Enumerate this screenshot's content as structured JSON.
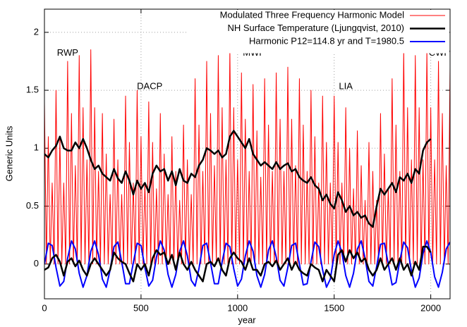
{
  "chart_data": {
    "type": "line",
    "xlabel": "year",
    "ylabel": "Generic Units",
    "xlim": [
      0,
      2100
    ],
    "ylim": [
      -0.3,
      2.2
    ],
    "xticks": [
      0,
      500,
      1000,
      1500,
      2000
    ],
    "yticks": [
      0,
      0.5,
      1,
      1.5,
      2
    ],
    "grid": true,
    "legend": "upper right",
    "annotations": [
      "RWP",
      "DACP",
      "MWP",
      "LIA",
      "CWP"
    ],
    "series": [
      {
        "name": "Modulated Three Frequency Harmonic Model",
        "color": "#ff0000",
        "x": [
          0,
          10,
          20,
          30,
          40,
          50,
          60,
          70,
          80,
          90,
          100,
          110,
          120,
          130,
          140,
          150,
          160,
          170,
          180,
          190,
          200,
          210,
          220,
          230,
          240,
          250,
          260,
          270,
          280,
          290,
          300,
          310,
          320,
          330,
          340,
          350,
          360,
          370,
          380,
          390,
          400,
          410,
          420,
          430,
          440,
          450,
          460,
          470,
          480,
          490,
          500,
          510,
          520,
          530,
          540,
          550,
          560,
          570,
          580,
          590,
          600,
          610,
          620,
          630,
          640,
          650,
          660,
          670,
          680,
          690,
          700,
          710,
          720,
          730,
          740,
          750,
          760,
          770,
          780,
          790,
          800,
          810,
          820,
          830,
          840,
          850,
          860,
          870,
          880,
          890,
          900,
          910,
          920,
          930,
          940,
          950,
          960,
          970,
          980,
          990,
          1000,
          1010,
          1020,
          1030,
          1040,
          1050,
          1060,
          1070,
          1080,
          1090,
          1100,
          1110,
          1120,
          1130,
          1140,
          1150,
          1160,
          1170,
          1180,
          1190,
          1200,
          1210,
          1220,
          1230,
          1240,
          1250,
          1260,
          1270,
          1280,
          1290,
          1300,
          1310,
          1320,
          1330,
          1340,
          1350,
          1360,
          1370,
          1380,
          1390,
          1400,
          1410,
          1420,
          1430,
          1440,
          1450,
          1460,
          1470,
          1480,
          1490,
          1500,
          1510,
          1520,
          1530,
          1540,
          1550,
          1560,
          1570,
          1580,
          1590,
          1600,
          1610,
          1620,
          1630,
          1640,
          1650,
          1660,
          1670,
          1680,
          1690,
          1700,
          1710,
          1720,
          1730,
          1740,
          1750,
          1760,
          1770,
          1780,
          1790,
          1800,
          1810,
          1820,
          1830,
          1840,
          1850,
          1860,
          1870,
          1880,
          1890,
          1900,
          1910,
          1920,
          1930,
          1940,
          1950,
          1960,
          1970,
          1980,
          1990,
          2000,
          2010,
          2020,
          2030,
          2040,
          2050,
          2060,
          2070,
          2080,
          2090,
          2100
        ],
        "values": [
          1.4,
          0,
          1.1,
          0,
          0.7,
          0,
          1.5,
          0,
          1.1,
          0,
          0.7,
          0,
          1.75,
          0,
          1.3,
          0,
          0.85,
          0,
          1.8,
          0,
          1.35,
          0,
          0.9,
          0,
          1.85,
          0,
          1.35,
          0,
          0.8,
          0,
          1.3,
          0,
          0.95,
          0,
          0.6,
          0,
          1.25,
          0,
          0.9,
          0,
          0.6,
          0,
          1.45,
          0,
          1.05,
          0,
          0.7,
          0,
          1.5,
          0,
          1.1,
          0,
          0.7,
          0,
          1.4,
          0,
          1.05,
          0,
          0.65,
          0,
          1.3,
          0,
          0.95,
          0,
          0.6,
          0,
          1.1,
          0,
          0.8,
          0,
          0.55,
          0,
          1.2,
          0,
          0.9,
          0,
          0.6,
          0,
          1.6,
          0,
          1.2,
          0,
          0.8,
          0,
          1.75,
          0,
          1.3,
          0,
          0.85,
          0,
          1.8,
          0,
          1.35,
          0,
          0.9,
          0,
          1.85,
          0,
          1.35,
          0,
          0.9,
          0,
          1.65,
          0,
          1.25,
          0,
          0.8,
          0,
          1.55,
          0,
          1.15,
          0,
          0.75,
          0,
          1.6,
          0,
          1.2,
          0,
          0.8,
          0,
          1.65,
          0,
          1.25,
          0,
          0.8,
          0,
          1.7,
          0,
          1.25,
          0,
          0.85,
          0,
          1.6,
          0,
          1.2,
          0,
          0.8,
          0,
          1.5,
          0,
          1.1,
          0,
          0.7,
          0,
          1.45,
          0,
          1.05,
          0,
          0.7,
          0,
          1.45,
          0,
          1.05,
          0,
          0.7,
          0,
          1.35,
          0,
          1.0,
          0,
          0.65,
          0,
          1.15,
          0,
          0.85,
          0,
          0.55,
          0,
          1.05,
          0,
          0.8,
          0,
          0.55,
          0,
          1.3,
          0,
          0.95,
          0,
          0.65,
          0,
          1.6,
          0,
          1.2,
          0,
          0.8,
          0,
          1.85,
          0,
          1.35,
          0,
          0.9,
          0,
          1.8,
          0,
          1.35,
          0,
          0.9,
          0,
          1.85,
          0,
          1.35,
          0,
          0.9,
          0,
          1.75,
          0,
          1.3,
          0,
          0.85,
          0,
          1.7
        ]
      },
      {
        "name": "NH Surface Temperature (Ljungqvist, 2010)",
        "color": "#000000",
        "x": [
          0,
          20,
          40,
          60,
          80,
          100,
          120,
          140,
          160,
          180,
          200,
          220,
          240,
          260,
          280,
          300,
          320,
          340,
          360,
          380,
          400,
          420,
          440,
          460,
          480,
          500,
          520,
          540,
          560,
          580,
          600,
          620,
          640,
          660,
          680,
          700,
          720,
          740,
          760,
          780,
          800,
          820,
          840,
          860,
          880,
          900,
          920,
          940,
          960,
          980,
          1000,
          1020,
          1040,
          1060,
          1080,
          1100,
          1120,
          1140,
          1160,
          1180,
          1200,
          1220,
          1240,
          1260,
          1280,
          1300,
          1320,
          1340,
          1360,
          1380,
          1400,
          1420,
          1440,
          1460,
          1480,
          1500,
          1520,
          1540,
          1560,
          1580,
          1600,
          1620,
          1640,
          1660,
          1680,
          1700,
          1720,
          1740,
          1760,
          1780,
          1800,
          1820,
          1840,
          1860,
          1880,
          1900,
          1920,
          1940,
          1960,
          1980,
          2000
        ],
        "values": [
          0.95,
          0.92,
          0.98,
          1.02,
          1.1,
          1.0,
          0.98,
          0.98,
          1.05,
          1.0,
          1.08,
          1.0,
          0.9,
          0.82,
          0.85,
          0.78,
          0.75,
          0.72,
          0.82,
          0.74,
          0.7,
          0.8,
          0.72,
          0.6,
          0.72,
          0.65,
          0.7,
          0.62,
          0.78,
          0.85,
          0.8,
          0.82,
          0.72,
          0.8,
          0.68,
          0.82,
          0.72,
          0.7,
          0.78,
          0.75,
          0.85,
          0.9,
          1.0,
          0.98,
          0.95,
          0.98,
          0.92,
          0.95,
          1.1,
          1.15,
          1.1,
          1.05,
          1.0,
          1.08,
          0.95,
          0.9,
          0.85,
          0.88,
          0.85,
          0.82,
          0.88,
          0.82,
          0.85,
          0.87,
          0.8,
          0.82,
          0.75,
          0.72,
          0.7,
          0.75,
          0.68,
          0.65,
          0.55,
          0.6,
          0.52,
          0.48,
          0.62,
          0.55,
          0.45,
          0.5,
          0.42,
          0.45,
          0.4,
          0.42,
          0.35,
          0.32,
          0.5,
          0.65,
          0.6,
          0.65,
          0.7,
          0.62,
          0.75,
          0.72,
          0.78,
          0.7,
          0.82,
          0.78,
          0.98,
          1.05,
          1.08
        ]
      },
      {
        "name": "Harmonic P12=114.8 yr and T=1980.5",
        "color": "#0000ff",
        "x": [
          0,
          20,
          40,
          60,
          80,
          100,
          120,
          140,
          160,
          180,
          200,
          220,
          240,
          260,
          280,
          300,
          320,
          340,
          360,
          380,
          400,
          420,
          440,
          460,
          480,
          500,
          520,
          540,
          560,
          580,
          600,
          620,
          640,
          660,
          680,
          700,
          720,
          740,
          760,
          780,
          800,
          820,
          840,
          860,
          880,
          900,
          920,
          940,
          960,
          980,
          1000,
          1020,
          1040,
          1060,
          1080,
          1100,
          1120,
          1140,
          1160,
          1180,
          1200,
          1220,
          1240,
          1260,
          1280,
          1300,
          1320,
          1340,
          1360,
          1380,
          1400,
          1420,
          1440,
          1460,
          1480,
          1500,
          1520,
          1540,
          1560,
          1580,
          1600,
          1620,
          1640,
          1660,
          1680,
          1700,
          1720,
          1740,
          1760,
          1780,
          1800,
          1820,
          1840,
          1860,
          1880,
          1900,
          1920,
          1940,
          1960,
          1980,
          2000,
          2020,
          2040,
          2060,
          2080,
          2100
        ],
        "values": [
          0.0,
          0.18,
          0.16,
          -0.03,
          -0.19,
          -0.15,
          0.05,
          0.2,
          0.13,
          -0.08,
          -0.2,
          -0.1,
          0.11,
          0.2,
          0.08,
          -0.13,
          -0.2,
          -0.05,
          0.15,
          0.19,
          0.02,
          -0.17,
          -0.17,
          0.01,
          0.18,
          0.16,
          -0.03,
          -0.19,
          -0.14,
          0.06,
          0.2,
          0.12,
          -0.09,
          -0.2,
          -0.09,
          0.11,
          0.2,
          0.07,
          -0.14,
          -0.19,
          -0.04,
          0.16,
          0.18,
          0.01,
          -0.17,
          -0.17,
          0.02,
          0.18,
          0.15,
          -0.04,
          -0.19,
          -0.13,
          0.07,
          0.2,
          0.11,
          -0.1,
          -0.2,
          -0.09,
          0.12,
          0.2,
          0.06,
          -0.14,
          -0.19,
          -0.03,
          0.16,
          0.18,
          0.0,
          -0.18,
          -0.17,
          0.02,
          0.19,
          0.15,
          -0.05,
          -0.2,
          -0.13,
          0.08,
          0.2,
          0.1,
          -0.1,
          -0.2,
          -0.08,
          0.13,
          0.2,
          0.05,
          -0.15,
          -0.19,
          -0.02,
          0.17,
          0.18,
          0.0,
          -0.18,
          -0.16,
          0.03,
          0.19,
          0.14,
          -0.06,
          -0.2,
          -0.12,
          0.09,
          0.2,
          0.1,
          -0.11,
          -0.2,
          -0.07,
          0.13,
          0.19
        ]
      },
      {
        "color": "#000000",
        "x": [
          0,
          20,
          40,
          60,
          80,
          100,
          120,
          140,
          160,
          180,
          200,
          220,
          240,
          260,
          280,
          300,
          320,
          340,
          360,
          380,
          400,
          420,
          440,
          460,
          480,
          500,
          520,
          540,
          560,
          580,
          600,
          620,
          640,
          660,
          680,
          700,
          720,
          740,
          760,
          780,
          800,
          820,
          840,
          860,
          880,
          900,
          920,
          940,
          960,
          980,
          1000,
          1020,
          1040,
          1060,
          1080,
          1100,
          1120,
          1140,
          1160,
          1180,
          1200,
          1220,
          1240,
          1260,
          1280,
          1300,
          1320,
          1340,
          1360,
          1380,
          1400,
          1420,
          1440,
          1460,
          1480,
          1500,
          1520,
          1540,
          1560,
          1580,
          1600,
          1620,
          1640,
          1660,
          1680,
          1700,
          1720,
          1740,
          1760,
          1780,
          1800,
          1820,
          1840,
          1860,
          1880,
          1900,
          1920,
          1940,
          1960,
          1980,
          2000
        ],
        "values": [
          -0.05,
          -0.03,
          0.05,
          0.08,
          0.02,
          -0.1,
          0.02,
          0.05,
          -0.02,
          0.03,
          -0.05,
          -0.1,
          0.0,
          0.05,
          0.0,
          -0.05,
          -0.1,
          -0.05,
          0.1,
          0.05,
          0.02,
          0.0,
          -0.08,
          -0.15,
          0.0,
          -0.05,
          0.0,
          -0.1,
          0.05,
          0.12,
          0.08,
          0.1,
          0.0,
          0.08,
          -0.05,
          0.1,
          0.0,
          -0.05,
          0.02,
          -0.05,
          -0.1,
          -0.15,
          0.0,
          0.02,
          -0.02,
          0.05,
          -0.05,
          -0.1,
          0.05,
          0.1,
          0.05,
          0.02,
          -0.05,
          0.05,
          -0.05,
          -0.05,
          -0.1,
          0.0,
          0.02,
          -0.02,
          0.03,
          -0.05,
          0.0,
          0.05,
          -0.05,
          0.02,
          -0.05,
          -0.08,
          -0.1,
          0.0,
          -0.03,
          -0.05,
          -0.15,
          -0.05,
          -0.1,
          -0.15,
          0.08,
          0.12,
          0.02,
          0.12,
          0.05,
          0.1,
          0.02,
          0.05,
          -0.05,
          -0.1,
          -0.05,
          0.05,
          -0.05,
          0.0,
          0.05,
          -0.05,
          0.05,
          -0.05,
          0.0,
          -0.1,
          0.02,
          -0.05,
          0.15,
          0.15,
          0.1
        ]
      }
    ]
  }
}
